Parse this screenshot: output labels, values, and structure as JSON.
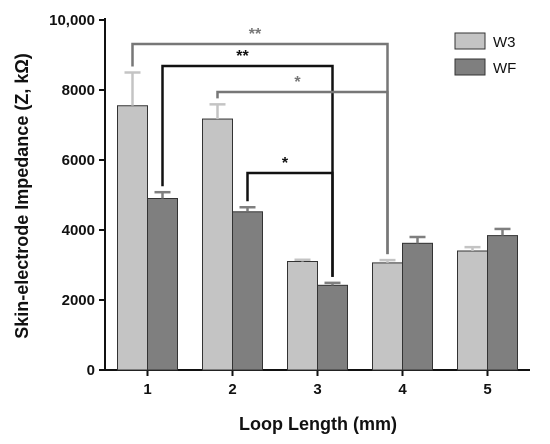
{
  "chart_data": {
    "type": "bar",
    "xlabel": "Loop Length (mm)",
    "ylabel": "Skin-electrode Impedance (Z, kΩ)",
    "categories": [
      "1",
      "2",
      "3",
      "4",
      "5"
    ],
    "ylim": [
      0,
      10000
    ],
    "yticks": [
      0,
      2000,
      4000,
      6000,
      8000,
      10000
    ],
    "ytick_labels": [
      "0",
      "2000",
      "4000",
      "6000",
      "8000",
      "10,000"
    ],
    "legend_position": "top-right",
    "series": [
      {
        "name": "W3",
        "color": "#c4c4c4",
        "values": [
          7550,
          7170,
          3100,
          3060,
          3400
        ],
        "errors": [
          950,
          420,
          50,
          80,
          110
        ]
      },
      {
        "name": "WF",
        "color": "#7f7f7f",
        "values": [
          4900,
          4520,
          2420,
          3620,
          3840
        ],
        "errors": [
          180,
          130,
          70,
          180,
          190
        ]
      }
    ],
    "significance": [
      {
        "label": "**",
        "from": "1-W3",
        "to": "4-W3",
        "color": "#777777"
      },
      {
        "label": "**",
        "from": "1-WF",
        "to": "3-WF",
        "color": "#111111"
      },
      {
        "label": "*",
        "from": "2-W3",
        "to": "4-W3",
        "color": "#777777"
      },
      {
        "label": "*",
        "from": "2-WF",
        "to": "3-WF",
        "color": "#111111"
      }
    ]
  }
}
